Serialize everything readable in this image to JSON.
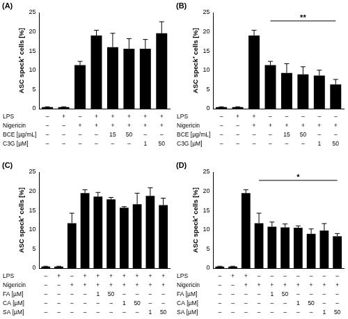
{
  "chart_data": [
    {
      "type": "bar",
      "title": "(A)",
      "y_label": "ASC speck⁺ cells [%]",
      "categories": [
        null,
        null,
        null,
        null,
        null,
        null,
        null,
        null
      ],
      "values": [
        0.4,
        0.4,
        11.3,
        19.0,
        16.0,
        15.6,
        15.6,
        19.6
      ],
      "errors": [
        0.1,
        0.1,
        1.0,
        1.4,
        3.6,
        2.6,
        2.4,
        3.0
      ],
      "color": "#000000",
      "ylim": [
        0,
        25
      ],
      "yticks": [
        0,
        5,
        10,
        15,
        20,
        25
      ],
      "grid": false,
      "tick_labels": "y",
      "conditions": [
        {
          "label": "LPS",
          "cells": [
            "–",
            "+",
            "–",
            "+",
            "+",
            "+",
            "+",
            "+"
          ]
        },
        {
          "label": "Nigericin",
          "cells": [
            "–",
            "–",
            "+",
            "+",
            "+",
            "+",
            "+",
            "+"
          ]
        },
        {
          "label": "BCE [µg/mL]",
          "cells": [
            "–",
            "–",
            "–",
            "–",
            "15",
            "50",
            "–",
            "–"
          ]
        },
        {
          "label": "C3G [µM]",
          "cells": [
            "–",
            "–",
            "–",
            "–",
            "–",
            "–",
            "1",
            "50"
          ]
        }
      ],
      "annotations": []
    },
    {
      "type": "bar",
      "title": "(B)",
      "y_label": "ASC speck⁺ cells [%]",
      "categories": [
        null,
        null,
        null,
        null,
        null,
        null,
        null,
        null
      ],
      "values": [
        0.4,
        0.4,
        19.0,
        11.3,
        9.3,
        8.9,
        8.6,
        6.3
      ],
      "errors": [
        0.1,
        0.1,
        1.4,
        1.0,
        2.4,
        2.0,
        1.4,
        1.3
      ],
      "color": "#000000",
      "ylim": [
        0,
        25
      ],
      "yticks": [
        0,
        5,
        10,
        15,
        20,
        25
      ],
      "grid": false,
      "tick_labels": "y",
      "conditions": [
        {
          "label": "LPS",
          "cells": [
            "–",
            "+",
            "+",
            "–",
            "–",
            "–",
            "–",
            "–"
          ]
        },
        {
          "label": "Nigericin",
          "cells": [
            "–",
            "–",
            "+",
            "+",
            "+",
            "+",
            "+",
            "+"
          ]
        },
        {
          "label": "BCE [µg/mL]",
          "cells": [
            "–",
            "–",
            "–",
            "–",
            "15",
            "50",
            "–",
            "–"
          ]
        },
        {
          "label": "C3G [µM]",
          "cells": [
            "–",
            "–",
            "–",
            "–",
            "–",
            "–",
            "1",
            "50"
          ]
        }
      ],
      "annotations": [
        {
          "text": "**",
          "from": 3,
          "to": 7
        }
      ]
    },
    {
      "type": "bar",
      "title": "(C)",
      "y_label": "ASC speck⁺ cells [%]",
      "categories": [
        null,
        null,
        null,
        null,
        null,
        null,
        null,
        null,
        null,
        null
      ],
      "values": [
        0.4,
        0.4,
        11.7,
        19.5,
        18.6,
        17.9,
        15.7,
        16.6,
        18.8,
        16.4
      ],
      "errors": [
        0.1,
        0.1,
        2.6,
        0.9,
        1.1,
        0.5,
        0.3,
        2.9,
        2.1,
        1.8
      ],
      "color": "#000000",
      "ylim": [
        0,
        25
      ],
      "yticks": [
        0,
        5,
        10,
        15,
        20,
        25
      ],
      "grid": false,
      "tick_labels": "y",
      "conditions": [
        {
          "label": "LPS",
          "cells": [
            "–",
            "+",
            "–",
            "+",
            "+",
            "+",
            "+",
            "+",
            "+",
            "+"
          ]
        },
        {
          "label": "Nigericin",
          "cells": [
            "–",
            "–",
            "+",
            "+",
            "+",
            "+",
            "+",
            "+",
            "+",
            "+"
          ]
        },
        {
          "label": "FA [µM]",
          "cells": [
            "–",
            "–",
            "–",
            "–",
            "1",
            "50",
            "–",
            "–",
            "–",
            "–"
          ]
        },
        {
          "label": "CA [µM]",
          "cells": [
            "–",
            "–",
            "–",
            "–",
            "–",
            "–",
            "1",
            "50",
            "–",
            "–"
          ]
        },
        {
          "label": "SA [µM]",
          "cells": [
            "–",
            "–",
            "–",
            "–",
            "–",
            "–",
            "–",
            "–",
            "1",
            "50"
          ]
        }
      ],
      "annotations": []
    },
    {
      "type": "bar",
      "title": "(D)",
      "y_label": "ASC speck⁺ cells [%]",
      "categories": [
        null,
        null,
        null,
        null,
        null,
        null,
        null,
        null,
        null,
        null
      ],
      "values": [
        0.4,
        0.4,
        19.5,
        11.7,
        10.8,
        10.6,
        10.5,
        8.9,
        9.8,
        8.3
      ],
      "errors": [
        0.1,
        0.1,
        0.9,
        2.6,
        1.2,
        0.9,
        0.5,
        1.3,
        1.8,
        0.7
      ],
      "color": "#000000",
      "ylim": [
        0,
        25
      ],
      "yticks": [
        0,
        5,
        10,
        15,
        20,
        25
      ],
      "grid": false,
      "tick_labels": "y",
      "conditions": [
        {
          "label": "LPS",
          "cells": [
            "–",
            "+",
            "+",
            "–",
            "–",
            "–",
            "–",
            "–",
            "–",
            "–"
          ]
        },
        {
          "label": "Nigericin",
          "cells": [
            "–",
            "–",
            "+",
            "+",
            "+",
            "+",
            "+",
            "+",
            "+",
            "+"
          ]
        },
        {
          "label": "FA [µM]",
          "cells": [
            "–",
            "–",
            "–",
            "–",
            "1",
            "50",
            "–",
            "–",
            "–",
            "–"
          ]
        },
        {
          "label": "CA [µM]",
          "cells": [
            "–",
            "–",
            "–",
            "–",
            "–",
            "–",
            "1",
            "50",
            "–",
            "–"
          ]
        },
        {
          "label": "SA [µM]",
          "cells": [
            "–",
            "–",
            "–",
            "–",
            "–",
            "–",
            "–",
            "–",
            "1",
            "50"
          ]
        }
      ],
      "annotations": [
        {
          "text": "*",
          "from": 3,
          "to": 9
        }
      ]
    }
  ]
}
